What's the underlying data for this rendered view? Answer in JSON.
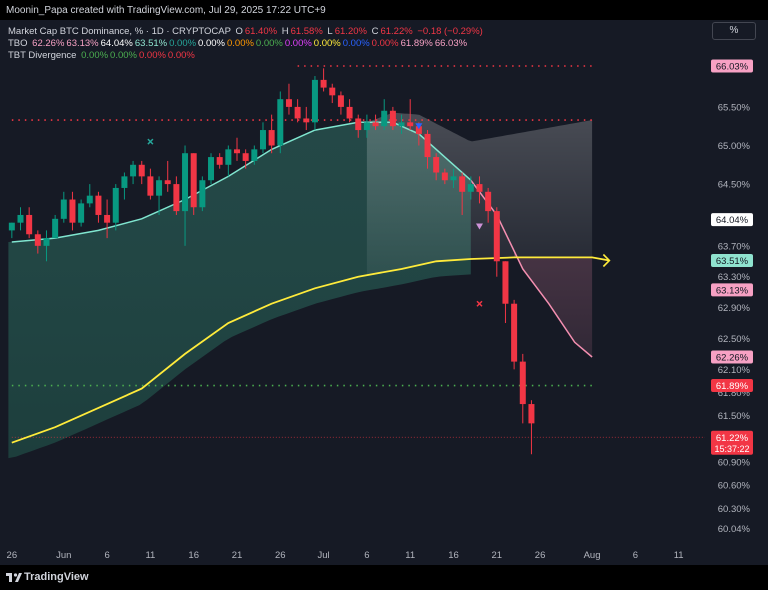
{
  "credit": "Moonin_Papa created with TradingView.com, Jul 29, 2025 17:22 UTC+9",
  "brand": "TradingView",
  "scale_button": "%",
  "legend": {
    "main": [
      {
        "text": "Market Cap BTC Dominance, % · 1D · CRYPTOCAP ",
        "color": "#d1d4dc"
      },
      {
        "text": "O",
        "color": "#d1d4dc"
      },
      {
        "text": "61.40%",
        "color": "#f23645"
      },
      {
        "text": " H",
        "color": "#d1d4dc"
      },
      {
        "text": "61.58%",
        "color": "#f23645"
      },
      {
        "text": " L",
        "color": "#d1d4dc"
      },
      {
        "text": "61.20%",
        "color": "#f23645"
      },
      {
        "text": " C",
        "color": "#d1d4dc"
      },
      {
        "text": "61.22%",
        "color": "#f23645"
      },
      {
        "text": " −0.18 (−0.29%)",
        "color": "#f23645"
      }
    ],
    "tbo": [
      {
        "text": "TBO ",
        "color": "#d1d4dc"
      },
      {
        "text": "62.26%",
        "color": "#f7a1c4"
      },
      {
        "text": "63.13%",
        "color": "#f7a1c4"
      },
      {
        "text": "64.04%",
        "color": "#ffffff"
      },
      {
        "text": "63.51%",
        "color": "#8fe3cf"
      },
      {
        "text": "0.00%",
        "color": "#26a69a"
      },
      {
        "text": "0.00%",
        "color": "#ffffff"
      },
      {
        "text": "0.00%",
        "color": "#ff9800"
      },
      {
        "text": "0.00%",
        "color": "#4caf50"
      },
      {
        "text": "0.00%",
        "color": "#e040fb"
      },
      {
        "text": "0.00%",
        "color": "#ffeb3b"
      },
      {
        "text": "0.00%",
        "color": "#2962ff"
      },
      {
        "text": "0.00%",
        "color": "#f23645"
      },
      {
        "text": "61.89%",
        "color": "#f7a1c4"
      },
      {
        "text": "66.03%",
        "color": "#f7a1c4"
      }
    ],
    "tbt": [
      {
        "text": "TBT Divergence ",
        "color": "#d1d4dc"
      },
      {
        "text": "0.00%",
        "color": "#4caf50"
      },
      {
        "text": "0.00%",
        "color": "#4caf50"
      },
      {
        "text": "0.00%",
        "color": "#f23645"
      },
      {
        "text": "0.00%",
        "color": "#f23645"
      }
    ]
  },
  "chart_data": {
    "type": "candlestick",
    "y_unit": "%",
    "ylim": [
      59.85,
      66.6
    ],
    "y_ticks": [
      "66.03%",
      "65.50%",
      "65.00%",
      "64.50%",
      "64.04%",
      "63.70%",
      "63.51%",
      "63.30%",
      "63.13%",
      "62.90%",
      "62.50%",
      "62.26%",
      "62.10%",
      "61.89%",
      "61.80%",
      "61.50%",
      "61.22%",
      "60.90%",
      "60.60%",
      "60.30%",
      "60.04%"
    ],
    "plain_ticks": [
      "65.50%",
      "65.00%",
      "64.50%",
      "63.70%",
      "63.30%",
      "62.90%",
      "62.50%",
      "62.10%",
      "61.80%",
      "61.50%",
      "60.90%",
      "60.60%",
      "60.30%",
      "60.04%"
    ],
    "x_ticks": [
      {
        "label": "26",
        "bar": -1
      },
      {
        "label": "Jun",
        "bar": 5
      },
      {
        "label": "6",
        "bar": 10
      },
      {
        "label": "11",
        "bar": 15
      },
      {
        "label": "16",
        "bar": 20
      },
      {
        "label": "21",
        "bar": 25
      },
      {
        "label": "26",
        "bar": 30
      },
      {
        "label": "Jul",
        "bar": 35
      },
      {
        "label": "6",
        "bar": 40
      },
      {
        "label": "11",
        "bar": 45
      },
      {
        "label": "16",
        "bar": 50
      },
      {
        "label": "21",
        "bar": 55
      },
      {
        "label": "26",
        "bar": 60
      },
      {
        "label": "Aug",
        "bar": 66
      },
      {
        "label": "6",
        "bar": 71
      },
      {
        "label": "11",
        "bar": 76
      }
    ],
    "candles": [
      [
        63.9,
        64.0,
        63.8,
        64.0
      ],
      [
        64.0,
        64.2,
        63.9,
        64.1
      ],
      [
        64.1,
        64.2,
        63.8,
        63.85
      ],
      [
        63.85,
        63.9,
        63.6,
        63.7
      ],
      [
        63.7,
        63.9,
        63.5,
        63.8
      ],
      [
        63.8,
        64.1,
        63.8,
        64.05
      ],
      [
        64.05,
        64.4,
        64.0,
        64.3
      ],
      [
        64.3,
        64.4,
        63.9,
        64.0
      ],
      [
        64.0,
        64.3,
        63.95,
        64.25
      ],
      [
        64.25,
        64.5,
        64.2,
        64.35
      ],
      [
        64.35,
        64.4,
        64.0,
        64.1
      ],
      [
        64.1,
        64.3,
        63.8,
        64.0
      ],
      [
        64.0,
        64.5,
        63.9,
        64.45
      ],
      [
        64.45,
        64.65,
        64.3,
        64.6
      ],
      [
        64.6,
        64.8,
        64.5,
        64.75
      ],
      [
        64.75,
        64.8,
        64.5,
        64.6
      ],
      [
        64.6,
        64.7,
        64.3,
        64.35
      ],
      [
        64.35,
        64.6,
        64.1,
        64.55
      ],
      [
        64.55,
        64.8,
        64.4,
        64.5
      ],
      [
        64.5,
        64.6,
        64.1,
        64.15
      ],
      [
        64.15,
        65.0,
        63.7,
        64.9
      ],
      [
        64.9,
        64.9,
        64.1,
        64.2
      ],
      [
        64.2,
        64.6,
        64.15,
        64.55
      ],
      [
        64.55,
        64.9,
        64.5,
        64.85
      ],
      [
        64.85,
        64.9,
        64.7,
        64.75
      ],
      [
        64.75,
        65.0,
        64.6,
        64.95
      ],
      [
        64.95,
        65.1,
        64.8,
        64.9
      ],
      [
        64.9,
        64.95,
        64.7,
        64.8
      ],
      [
        64.8,
        65.0,
        64.75,
        64.95
      ],
      [
        64.95,
        65.3,
        64.9,
        65.2
      ],
      [
        65.2,
        65.4,
        64.9,
        65.0
      ],
      [
        65.0,
        65.7,
        64.9,
        65.6
      ],
      [
        65.6,
        65.8,
        65.4,
        65.5
      ],
      [
        65.5,
        65.6,
        65.3,
        65.35
      ],
      [
        65.35,
        65.5,
        65.2,
        65.3
      ],
      [
        65.3,
        65.9,
        65.2,
        65.85
      ],
      [
        65.85,
        66.0,
        65.7,
        65.75
      ],
      [
        65.75,
        65.8,
        65.55,
        65.65
      ],
      [
        65.65,
        65.7,
        65.4,
        65.5
      ],
      [
        65.5,
        65.6,
        65.3,
        65.35
      ],
      [
        65.35,
        65.4,
        65.1,
        65.2
      ],
      [
        65.2,
        65.4,
        65.1,
        65.3
      ],
      [
        65.3,
        65.4,
        65.2,
        65.25
      ],
      [
        65.25,
        65.6,
        65.2,
        65.45
      ],
      [
        65.45,
        65.5,
        65.2,
        65.25
      ],
      [
        65.25,
        65.4,
        65.15,
        65.3
      ],
      [
        65.3,
        65.6,
        65.2,
        65.25
      ],
      [
        65.25,
        65.3,
        65.0,
        65.15
      ],
      [
        65.15,
        65.2,
        64.7,
        64.85
      ],
      [
        64.85,
        64.9,
        64.55,
        64.65
      ],
      [
        64.65,
        64.7,
        64.5,
        64.55
      ],
      [
        64.55,
        64.7,
        64.45,
        64.6
      ],
      [
        64.6,
        64.65,
        64.1,
        64.4
      ],
      [
        64.4,
        64.6,
        64.3,
        64.5
      ],
      [
        64.5,
        64.6,
        64.25,
        64.4
      ],
      [
        64.4,
        64.45,
        64.0,
        64.15
      ],
      [
        64.15,
        64.2,
        63.3,
        63.5
      ],
      [
        63.5,
        63.5,
        62.7,
        62.95
      ],
      [
        62.95,
        63.0,
        62.1,
        62.2
      ],
      [
        62.2,
        62.3,
        61.4,
        61.65
      ],
      [
        61.65,
        61.7,
        61.0,
        61.4
      ]
    ],
    "candle_x_offset": -1,
    "markers": [
      {
        "bar": 15,
        "shape": "cross",
        "price": 65.05,
        "color": "#26a69a"
      },
      {
        "bar": 46,
        "shape": "triangle-down",
        "price": 65.25,
        "color": "#2962ff"
      },
      {
        "bar": 53,
        "shape": "triangle-down",
        "price": 63.95,
        "color": "#ce93d8"
      },
      {
        "bar": 53,
        "shape": "cross",
        "price": 62.95,
        "color": "#f23645"
      }
    ],
    "hlines": [
      {
        "price": 66.03,
        "from_bar": 32,
        "color": "#f23645"
      },
      {
        "price": 65.33,
        "from_bar": -1,
        "color": "#f23645"
      },
      {
        "price": 61.89,
        "from_bar": -1,
        "color": "#4caf50"
      },
      {
        "price": 61.22,
        "from_bar": -1,
        "color": "#f23645",
        "thin": true
      }
    ],
    "series": [
      {
        "name": "fast",
        "color": "#80e6d0",
        "points": [
          [
            -1,
            63.75
          ],
          [
            4,
            63.8
          ],
          [
            9,
            63.9
          ],
          [
            14,
            64.05
          ],
          [
            19,
            64.3
          ],
          [
            24,
            64.6
          ],
          [
            29,
            64.95
          ],
          [
            34,
            65.2
          ],
          [
            39,
            65.3
          ],
          [
            43,
            65.3
          ],
          [
            46,
            65.15
          ],
          [
            49,
            64.85
          ],
          [
            52,
            64.55
          ]
        ]
      },
      {
        "name": "mid",
        "color": "#f48fb1",
        "points": [
          [
            52,
            64.55
          ],
          [
            55,
            64.1
          ],
          [
            58,
            63.4
          ],
          [
            61,
            62.95
          ],
          [
            64,
            62.45
          ],
          [
            66,
            62.26
          ]
        ]
      },
      {
        "name": "slow",
        "color": "#ffeb3b",
        "points": [
          [
            -1,
            61.15
          ],
          [
            4,
            61.35
          ],
          [
            9,
            61.6
          ],
          [
            14,
            61.85
          ],
          [
            19,
            62.3
          ],
          [
            24,
            62.7
          ],
          [
            29,
            62.95
          ],
          [
            34,
            63.15
          ],
          [
            39,
            63.3
          ],
          [
            44,
            63.4
          ],
          [
            48,
            63.5
          ],
          [
            52,
            63.53
          ],
          [
            57,
            63.55
          ],
          [
            62,
            63.55
          ],
          [
            66,
            63.55
          ],
          [
            68,
            63.51
          ]
        ]
      }
    ],
    "last_price": "61.22%",
    "countdown": "15:37:22",
    "price_labels": [
      {
        "text": "66.03%",
        "price": 66.03,
        "bg": "#f7a1c4",
        "fg": "#131722"
      },
      {
        "text": "64.04%",
        "price": 64.04,
        "bg": "#ffffff",
        "fg": "#131722"
      },
      {
        "text": "63.51%",
        "price": 63.51,
        "bg": "#8fe3cf",
        "fg": "#131722"
      },
      {
        "text": "63.13%",
        "price": 63.13,
        "bg": "#f7a1c4",
        "fg": "#131722"
      },
      {
        "text": "62.26%",
        "price": 62.26,
        "bg": "#f7a1c4",
        "fg": "#131722"
      },
      {
        "text": "61.89%",
        "price": 61.89,
        "bg": "#f23645",
        "fg": "#ffffff"
      }
    ]
  }
}
